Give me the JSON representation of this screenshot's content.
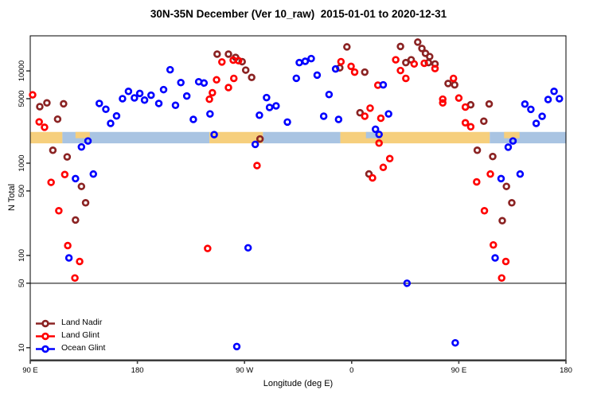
{
  "chart_data": {
    "type": "scatter",
    "title": "30N-35N December (Ver 10_raw)  2015-01-01 to 2020-12-31",
    "xlabel": "Longitude (deg E)",
    "ylabel": "N Total",
    "xlim": [
      90,
      540
    ],
    "ylim": [
      7.4,
      24000
    ],
    "y_log": true,
    "grid": false,
    "ref_line_y": 50,
    "x_ticks": [
      {
        "value": 90,
        "label": "90 E"
      },
      {
        "value": 180,
        "label": "180"
      },
      {
        "value": 270,
        "label": "90 W"
      },
      {
        "value": 360,
        "label": "0"
      },
      {
        "value": 450,
        "label": "90 E"
      },
      {
        "value": 540,
        "label": "180"
      }
    ],
    "y_ticks": [
      {
        "value": 10,
        "label": "10"
      },
      {
        "value": 50,
        "label": "50"
      },
      {
        "value": 100,
        "label": "100"
      },
      {
        "value": 500,
        "label": "500"
      },
      {
        "value": 1000,
        "label": "1000"
      },
      {
        "value": 5000,
        "label": "5000"
      },
      {
        "value": 10000,
        "label": "10000"
      }
    ],
    "land_ocean_band": {
      "value_range": [
        1640,
        2180
      ],
      "land_color": "#F6CF7D",
      "ocean_color": "#A9C4E2",
      "segments": [
        {
          "from": 90,
          "to": 117,
          "type": "land"
        },
        {
          "from": 117,
          "to": 240.5,
          "type": "ocean"
        },
        {
          "from": 240.5,
          "to": 285.5,
          "type": "land"
        },
        {
          "from": 285.5,
          "to": 350.5,
          "type": "ocean"
        },
        {
          "from": 350.5,
          "to": 476,
          "type": "land"
        },
        {
          "from": 476,
          "to": 540,
          "type": "ocean"
        }
      ],
      "patches": [
        {
          "from": 128,
          "to": 140,
          "type": "land",
          "half": true
        },
        {
          "from": 372,
          "to": 382,
          "type": "ocean",
          "half": true
        },
        {
          "from": 488,
          "to": 501,
          "type": "land",
          "half": true
        }
      ]
    },
    "legend_position": "bottom-left",
    "series": [
      {
        "name": "Land Nadir",
        "color": "#8B2323",
        "points": [
          [
            98,
            4100
          ],
          [
            104,
            4500
          ],
          [
            113,
            3000
          ],
          [
            118,
            4400
          ],
          [
            109,
            1380
          ],
          [
            121,
            1170
          ],
          [
            128,
            242
          ],
          [
            133,
            560
          ],
          [
            136.5,
            372
          ],
          [
            247,
            15200
          ],
          [
            256.5,
            15200
          ],
          [
            262.5,
            14000
          ],
          [
            268,
            12600
          ],
          [
            271,
            10200
          ],
          [
            276,
            8500
          ],
          [
            283,
            1830
          ],
          [
            350,
            10800
          ],
          [
            356,
            18200
          ],
          [
            371,
            9700
          ],
          [
            367,
            3520
          ],
          [
            374.5,
            764
          ],
          [
            401,
            18400
          ],
          [
            405.5,
            12300
          ],
          [
            410,
            13200
          ],
          [
            415.5,
            20500
          ],
          [
            419,
            17500
          ],
          [
            422,
            15500
          ],
          [
            424.5,
            12300
          ],
          [
            425.5,
            14300
          ],
          [
            430,
            11900
          ],
          [
            441,
            7300
          ],
          [
            446.5,
            7060
          ],
          [
            460,
            4290
          ],
          [
            471,
            2850
          ],
          [
            475.5,
            4380
          ],
          [
            465.5,
            1380
          ],
          [
            478.5,
            1180
          ],
          [
            486.5,
            238
          ],
          [
            490,
            560
          ],
          [
            494.5,
            372
          ]
        ]
      },
      {
        "name": "Land Glint",
        "color": "#FF0000",
        "points": [
          [
            92,
            5500
          ],
          [
            97.5,
            2800
          ],
          [
            102,
            2450
          ],
          [
            107.5,
            620
          ],
          [
            114,
            305
          ],
          [
            119,
            753
          ],
          [
            121.5,
            128
          ],
          [
            127.5,
            57
          ],
          [
            131.5,
            86
          ],
          [
            239,
            119
          ],
          [
            240.5,
            4930
          ],
          [
            243,
            5800
          ],
          [
            246.5,
            8000
          ],
          [
            251,
            12500
          ],
          [
            256.5,
            6600
          ],
          [
            260.5,
            13100
          ],
          [
            261,
            8300
          ],
          [
            265,
            12900
          ],
          [
            280.5,
            942
          ],
          [
            351,
            12600
          ],
          [
            359.5,
            11200
          ],
          [
            362.5,
            9700
          ],
          [
            371,
            3230
          ],
          [
            375.5,
            3950
          ],
          [
            377.5,
            693
          ],
          [
            382,
            7000
          ],
          [
            383,
            1650
          ],
          [
            384.5,
            3070
          ],
          [
            386.5,
            900
          ],
          [
            392,
            1120
          ],
          [
            397,
            13200
          ],
          [
            401,
            10100
          ],
          [
            405.5,
            8300
          ],
          [
            412.5,
            11900
          ],
          [
            421,
            12100
          ],
          [
            430,
            10600
          ],
          [
            436.5,
            4940
          ],
          [
            436.5,
            4500
          ],
          [
            445.5,
            8300
          ],
          [
            450,
            5080
          ],
          [
            455.5,
            4060
          ],
          [
            455.5,
            2740
          ],
          [
            460,
            2480
          ],
          [
            465,
            627
          ],
          [
            471.5,
            305
          ],
          [
            476.5,
            762
          ],
          [
            479,
            130
          ],
          [
            486,
            57
          ],
          [
            489.5,
            86
          ]
        ]
      },
      {
        "name": "Ocean Glint",
        "color": "#0000FF",
        "points": [
          [
            122.5,
            94
          ],
          [
            128,
            680
          ],
          [
            133,
            1500
          ],
          [
            138.5,
            1740
          ],
          [
            143,
            762
          ],
          [
            148,
            4440
          ],
          [
            153.5,
            3840
          ],
          [
            157.5,
            2700
          ],
          [
            162.5,
            3250
          ],
          [
            167.5,
            5000
          ],
          [
            172.5,
            6000
          ],
          [
            177.5,
            5100
          ],
          [
            182,
            5700
          ],
          [
            186,
            4830
          ],
          [
            191.5,
            5450
          ],
          [
            198,
            4440
          ],
          [
            202,
            6270
          ],
          [
            207.5,
            10300
          ],
          [
            212,
            4240
          ],
          [
            216.5,
            7470
          ],
          [
            221.5,
            5340
          ],
          [
            227,
            2980
          ],
          [
            231.5,
            7630
          ],
          [
            236,
            7390
          ],
          [
            241,
            3420
          ],
          [
            244.5,
            2040
          ],
          [
            263.5,
            10.3
          ],
          [
            273,
            121
          ],
          [
            279,
            1600
          ],
          [
            282.5,
            3310
          ],
          [
            288.5,
            5140
          ],
          [
            291,
            4020
          ],
          [
            296.5,
            4180
          ],
          [
            306,
            2790
          ],
          [
            313.5,
            8320
          ],
          [
            316,
            12300
          ],
          [
            321,
            12700
          ],
          [
            326,
            13600
          ],
          [
            331,
            9000
          ],
          [
            336.5,
            3230
          ],
          [
            341,
            5550
          ],
          [
            346.5,
            10500
          ],
          [
            349,
            2980
          ],
          [
            380,
            2330
          ],
          [
            383,
            2050
          ],
          [
            386.5,
            7060
          ],
          [
            391,
            3420
          ],
          [
            406.5,
            50
          ],
          [
            447,
            11.3
          ],
          [
            480.5,
            94
          ],
          [
            485.5,
            680
          ],
          [
            491.5,
            1490
          ],
          [
            495.5,
            1740
          ],
          [
            501.5,
            762
          ],
          [
            505.5,
            4370
          ],
          [
            510.5,
            3830
          ],
          [
            515,
            2700
          ],
          [
            520,
            3220
          ],
          [
            525,
            4900
          ],
          [
            530,
            6000
          ],
          [
            534.5,
            5000
          ]
        ]
      }
    ]
  }
}
